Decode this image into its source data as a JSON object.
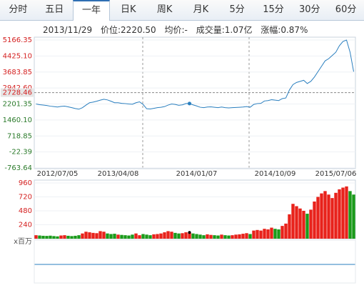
{
  "tabs": [
    "分时",
    "五日",
    "一年",
    "日K",
    "周K",
    "月K",
    "5分",
    "15分",
    "30分",
    "60分"
  ],
  "info": {
    "date": "2013/11/29",
    "price": "价位:2220.50",
    "avg": "均价:-",
    "volume": "成交量:1.07亿",
    "change": "涨幅:0.87%"
  },
  "chart_data": [
    {
      "type": "line",
      "color": "#2a7fbf",
      "categories": [
        null,
        null,
        null,
        null,
        null,
        null,
        "2012/07/05",
        null,
        null,
        null,
        null,
        null,
        null,
        null,
        null,
        null,
        null,
        null,
        null,
        null,
        null,
        null,
        null,
        "2013/04/08",
        null,
        null,
        null,
        null,
        null,
        null,
        null,
        null,
        null,
        null,
        null,
        null,
        null,
        null,
        null,
        null,
        null,
        null,
        null,
        null,
        null,
        "2014/01/07",
        null,
        null,
        null,
        null,
        null,
        null,
        null,
        null,
        null,
        null,
        null,
        null,
        null,
        null,
        null,
        null,
        null,
        null,
        null,
        null,
        null,
        "2014/10/09",
        null,
        null,
        null,
        null,
        null,
        null,
        null,
        null,
        null,
        null,
        null,
        null,
        null,
        null,
        null,
        null,
        "2015/07/06",
        null,
        null,
        null,
        null,
        null
      ],
      "values": [
        2200,
        2170,
        2150,
        2130,
        2100,
        2080,
        2060,
        2090,
        2100,
        2070,
        2030,
        1990,
        1960,
        2030,
        2150,
        2260,
        2290,
        2330,
        2380,
        2420,
        2390,
        2330,
        2260,
        2260,
        2230,
        2220,
        2200,
        2190,
        2260,
        2300,
        2180,
        1980,
        1970,
        2000,
        2030,
        2050,
        2080,
        2150,
        2200,
        2180,
        2140,
        2160,
        2220,
        2220.5,
        2160,
        2110,
        2050,
        2030,
        2060,
        2070,
        2050,
        2030,
        2060,
        2030,
        2020,
        2030,
        2040,
        2050,
        2060,
        2080,
        2050,
        2180,
        2220,
        2230,
        2340,
        2360,
        2400,
        2380,
        2360,
        2450,
        2480,
        2850,
        3100,
        3200,
        3250,
        3300,
        3150,
        3250,
        3450,
        3700,
        3950,
        4200,
        4300,
        4450,
        4600,
        4900,
        5100,
        5166,
        4600,
        3700
      ],
      "ylim": [
        -763.64,
        5166.35
      ],
      "yticks": [
        -763.64,
        -22.39,
        718.85,
        {
          "value": 1460.1,
          "label": "1460.10"
        },
        2201.35,
        {
          "value": 2942.6,
          "label": "2942.60"
        },
        3683.85,
        {
          "value": 4425.1,
          "label": "4425.10"
        },
        5166.35
      ],
      "reference": 2728.46
    },
    {
      "type": "bar",
      "up_color": "#e8221b",
      "down_color": "#1a9a1a",
      "values": [
        60,
        55,
        50,
        48,
        52,
        45,
        40,
        55,
        60,
        50,
        45,
        50,
        60,
        90,
        120,
        110,
        100,
        95,
        130,
        120,
        90,
        80,
        85,
        70,
        65,
        60,
        55,
        70,
        90,
        60,
        80,
        70,
        60,
        75,
        80,
        90,
        110,
        130,
        120,
        100,
        90,
        95,
        110,
        107,
        90,
        80,
        70,
        60,
        75,
        65,
        60,
        55,
        70,
        60,
        55,
        60,
        70,
        75,
        85,
        95,
        80,
        140,
        150,
        140,
        170,
        160,
        190,
        170,
        160,
        220,
        260,
        420,
        600,
        560,
        520,
        480,
        430,
        500,
        640,
        720,
        780,
        820,
        760,
        700,
        790,
        850,
        880,
        900,
        820,
        760
      ],
      "ylim": [
        0,
        960
      ],
      "yticks": [
        240,
        480,
        720,
        960
      ],
      "unit": "x百万"
    }
  ]
}
